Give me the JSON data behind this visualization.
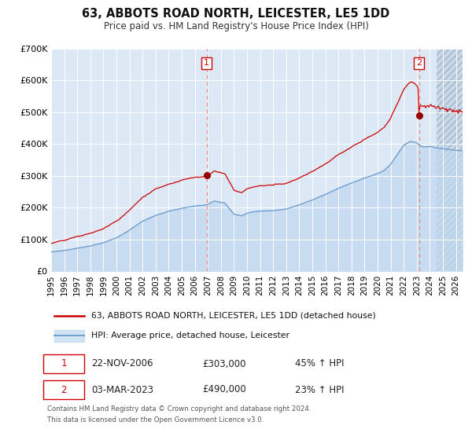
{
  "title": "63, ABBOTS ROAD NORTH, LEICESTER, LE5 1DD",
  "subtitle": "Price paid vs. HM Land Registry's House Price Index (HPI)",
  "legend_line1": "63, ABBOTS ROAD NORTH, LEICESTER, LE5 1DD (detached house)",
  "legend_line2": "HPI: Average price, detached house, Leicester",
  "annotation1_date": "22-NOV-2006",
  "annotation1_price": "£303,000",
  "annotation1_hpi": "45% ↑ HPI",
  "annotation1_year": 2006.896,
  "annotation1_value": 303000,
  "annotation2_date": "03-MAR-2023",
  "annotation2_price": "£490,000",
  "annotation2_hpi": "23% ↑ HPI",
  "annotation2_year": 2023.163,
  "annotation2_value": 490000,
  "footer_line1": "Contains HM Land Registry data © Crown copyright and database right 2024.",
  "footer_line2": "This data is licensed under the Open Government Licence v3.0.",
  "ylim": [
    0,
    700000
  ],
  "xlim_start": 1995.0,
  "xlim_end": 2026.5,
  "plot_bg_color": "#dce8f5",
  "hatch_bg_color": "#c8d8e8",
  "red_line_color": "#cc0000",
  "blue_line_color": "#6699cc",
  "dashed_line_color": "#ee8888",
  "grid_color": "#ffffff",
  "fig_bg_color": "#ffffff",
  "hatch_start": 2024.5
}
